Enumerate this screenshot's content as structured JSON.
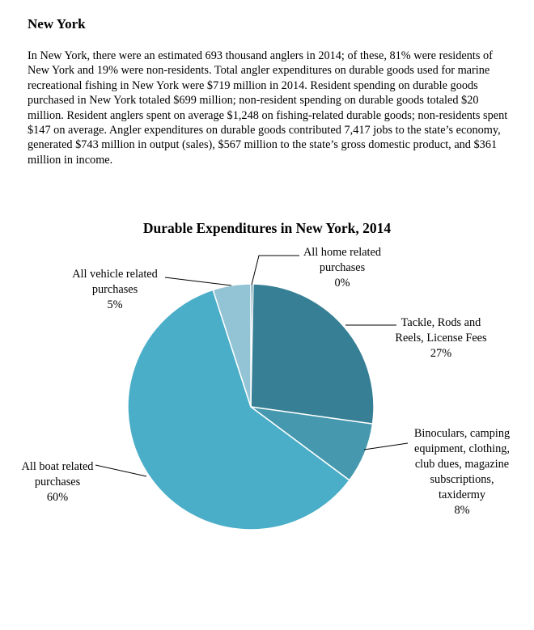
{
  "page": {
    "heading": "New York",
    "paragraph": "In New York, there were an estimated 693 thousand anglers in 2014; of these, 81% were residents of New York and 19% were non-residents. Total angler expenditures on durable goods used for marine recreational fishing in New York were $719 million in 2014. Resident spending on durable goods purchased in New York totaled $699 million; non-resident spending on durable goods totaled $20 million. Resident anglers spent on average $1,248 on fishing-related durable goods; non-residents spent $147 on average. Angler expenditures on durable goods contributed 7,417 jobs to the state’s economy, generated $743 million in output (sales), $567 million to the state’s gross domestic product, and $361 million in income."
  },
  "chart_data": {
    "type": "pie",
    "title": "Durable Expenditures in New York, 2014",
    "start_angle_deg": 0,
    "direction": "clockwise",
    "slices": [
      {
        "key": "home",
        "label_lines": [
          "All home related",
          "purchases"
        ],
        "percent_label": "0%",
        "value": 0.3,
        "color": "#2f6f86"
      },
      {
        "key": "tackle",
        "label_lines": [
          "Tackle, Rods and",
          "Reels, License Fees"
        ],
        "percent_label": "27%",
        "value": 27,
        "color": "#367f95"
      },
      {
        "key": "binoculars",
        "label_lines": [
          "Binoculars, camping",
          "equipment, clothing,",
          "club dues, magazine",
          "subscriptions,",
          "taxidermy"
        ],
        "percent_label": "8%",
        "value": 8,
        "color": "#4698ae"
      },
      {
        "key": "boat",
        "label_lines": [
          "All boat related",
          "purchases"
        ],
        "percent_label": "60%",
        "value": 60,
        "color": "#4baec8"
      },
      {
        "key": "vehicle",
        "label_lines": [
          "All vehicle related",
          "purchases"
        ],
        "percent_label": "5%",
        "value": 5,
        "color": "#93c4d6"
      }
    ]
  }
}
